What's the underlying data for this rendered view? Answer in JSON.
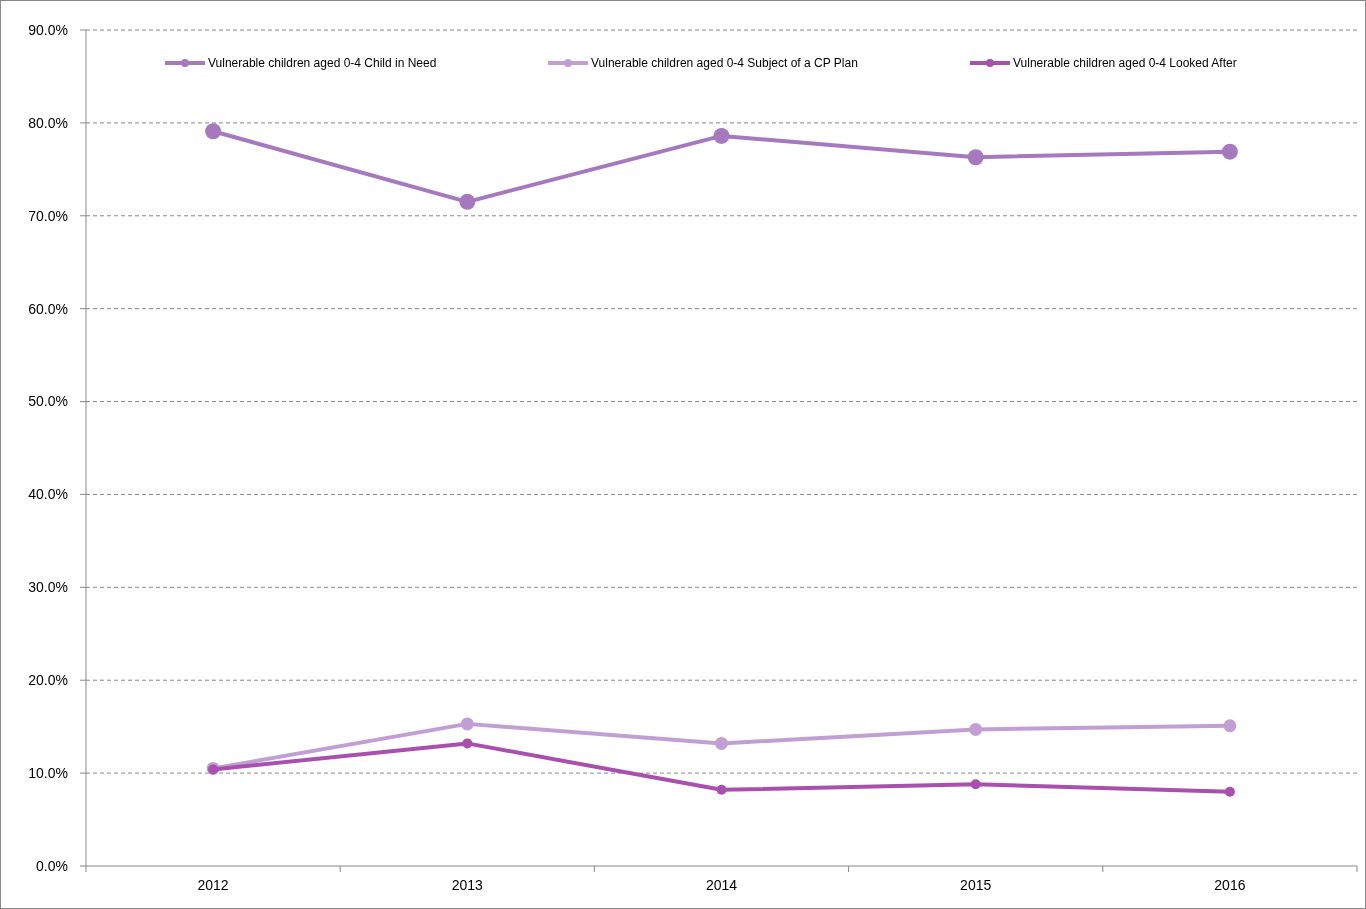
{
  "chart_data": {
    "type": "line",
    "categories": [
      "2012",
      "2013",
      "2014",
      "2015",
      "2016"
    ],
    "series": [
      {
        "name": "Vulnerable children aged 0-4 Child in Need",
        "color": "#a678bd",
        "values": [
          79.1,
          71.5,
          78.6,
          76.3,
          76.9
        ]
      },
      {
        "name": "Vulnerable children aged 0-4 Subject of a CP Plan",
        "color": "#c19fd4",
        "values": [
          10.5,
          15.3,
          13.2,
          14.7,
          15.1
        ]
      },
      {
        "name": "Vulnerable children aged 0-4 Looked After",
        "color": "#a94fae",
        "values": [
          10.4,
          13.2,
          8.2,
          8.8,
          8.0
        ]
      }
    ],
    "ylim": [
      0,
      90
    ],
    "yticks": [
      {
        "value": 0,
        "label": "0.0%"
      },
      {
        "value": 10,
        "label": "10.0%"
      },
      {
        "value": 20,
        "label": "20.0%"
      },
      {
        "value": 30,
        "label": "30.0%"
      },
      {
        "value": 40,
        "label": "40.0%"
      },
      {
        "value": 50,
        "label": "50.0%"
      },
      {
        "value": 60,
        "label": "60.0%"
      },
      {
        "value": 70,
        "label": "70.0%"
      },
      {
        "value": 80,
        "label": "80.0%"
      },
      {
        "value": 90,
        "label": "90.0%"
      }
    ],
    "grid": "y",
    "legend": "top",
    "marker": "circle",
    "line_style": "solid"
  }
}
